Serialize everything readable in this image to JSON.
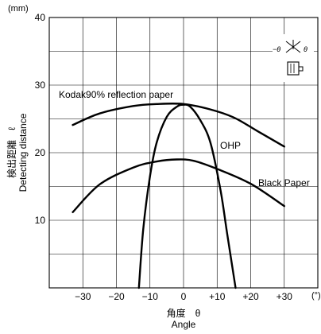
{
  "chart_data": {
    "type": "line",
    "x_axis": {
      "label_jp": "角度　θ",
      "label_en": "Angle",
      "unit": "(°)",
      "min": -40,
      "max": 40,
      "ticks": [
        -30,
        -20,
        -10,
        0,
        10,
        20,
        30
      ],
      "tick_labels": [
        "−30",
        "−20",
        "−10",
        "0",
        "+10",
        "+20",
        "+30"
      ]
    },
    "y_axis": {
      "label_jp": "検出距離　ℓ",
      "label_en": "Detecting distance",
      "unit": "(mm)",
      "min": 0,
      "max": 40,
      "ticks": [
        10,
        20,
        30,
        40
      ],
      "tick_labels": [
        "10",
        "20",
        "30",
        "40"
      ]
    },
    "grid": true,
    "series": [
      {
        "name": "Kodak90% reflection paper",
        "x": [
          -33,
          -25,
          -15,
          -8,
          0,
          8,
          15,
          22,
          30
        ],
        "y": [
          24.1,
          25.8,
          26.9,
          27.2,
          27.2,
          26.4,
          25.2,
          23.2,
          20.9
        ]
      },
      {
        "name": "OHP",
        "x": [
          -13.3,
          -12,
          -10,
          -8,
          -5,
          -2,
          0,
          2,
          5,
          8,
          11,
          13,
          15.5
        ],
        "y": [
          0,
          8.7,
          16.5,
          21.5,
          25.3,
          26.8,
          27.1,
          26.8,
          24.8,
          21.5,
          14.5,
          8.0,
          0
        ]
      },
      {
        "name": "Black Paper",
        "x": [
          -33,
          -25,
          -15,
          -8,
          -2,
          3,
          10,
          20,
          30
        ],
        "y": [
          11.2,
          15.3,
          17.8,
          18.7,
          19.0,
          18.8,
          17.6,
          15.4,
          12.1
        ]
      }
    ],
    "annotations": {
      "sensor_theta_left": "−θ",
      "sensor_theta_right": "θ"
    }
  }
}
